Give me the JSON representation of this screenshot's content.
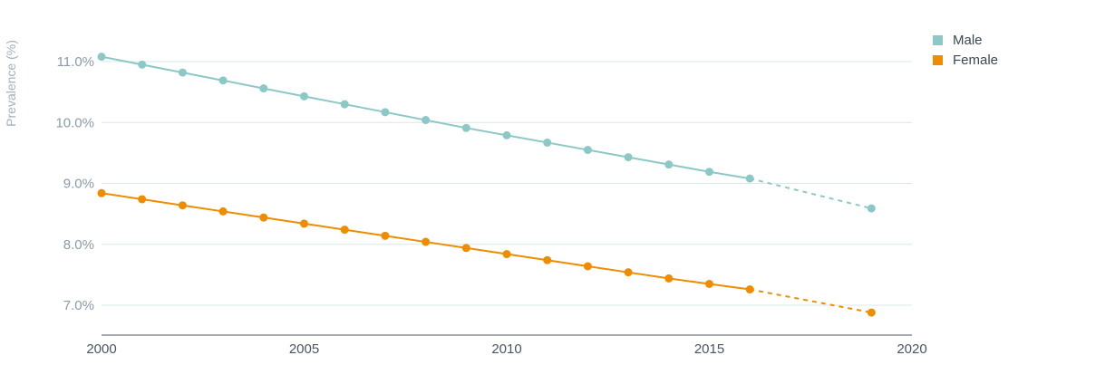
{
  "chart_data": {
    "type": "line",
    "ylabel": "Prevalence (%)",
    "xlabel": "",
    "xlim": [
      2000,
      2020
    ],
    "ylim": [
      6.5,
      11.5
    ],
    "x_ticks": [
      "2000",
      "2005",
      "2010",
      "2015",
      "2020"
    ],
    "y_ticks": [
      "7.0%",
      "8.0%",
      "9.0%",
      "10.0%",
      "11.0%"
    ],
    "grid": "horizontal",
    "legend_position": "top-right",
    "series": [
      {
        "name": "Male",
        "color": "#8cc9c6",
        "points": [
          {
            "x": 2000,
            "y": 11.08
          },
          {
            "x": 2001,
            "y": 10.95
          },
          {
            "x": 2002,
            "y": 10.82
          },
          {
            "x": 2003,
            "y": 10.69
          },
          {
            "x": 2004,
            "y": 10.56
          },
          {
            "x": 2005,
            "y": 10.43
          },
          {
            "x": 2006,
            "y": 10.3
          },
          {
            "x": 2007,
            "y": 10.17
          },
          {
            "x": 2008,
            "y": 10.04
          },
          {
            "x": 2009,
            "y": 9.91
          },
          {
            "x": 2010,
            "y": 9.79
          },
          {
            "x": 2011,
            "y": 9.67
          },
          {
            "x": 2012,
            "y": 9.55
          },
          {
            "x": 2013,
            "y": 9.43
          },
          {
            "x": 2014,
            "y": 9.31
          },
          {
            "x": 2015,
            "y": 9.19
          },
          {
            "x": 2016,
            "y": 9.08
          }
        ],
        "projected": [
          {
            "x": 2019,
            "y": 8.59
          }
        ]
      },
      {
        "name": "Female",
        "color": "#ef8c00",
        "points": [
          {
            "x": 2000,
            "y": 8.84
          },
          {
            "x": 2001,
            "y": 8.74
          },
          {
            "x": 2002,
            "y": 8.64
          },
          {
            "x": 2003,
            "y": 8.54
          },
          {
            "x": 2004,
            "y": 8.44
          },
          {
            "x": 2005,
            "y": 8.34
          },
          {
            "x": 2006,
            "y": 8.24
          },
          {
            "x": 2007,
            "y": 8.14
          },
          {
            "x": 2008,
            "y": 8.04
          },
          {
            "x": 2009,
            "y": 7.94
          },
          {
            "x": 2010,
            "y": 7.84
          },
          {
            "x": 2011,
            "y": 7.74
          },
          {
            "x": 2012,
            "y": 7.64
          },
          {
            "x": 2013,
            "y": 7.54
          },
          {
            "x": 2014,
            "y": 7.44
          },
          {
            "x": 2015,
            "y": 7.35
          },
          {
            "x": 2016,
            "y": 7.26
          }
        ],
        "projected": [
          {
            "x": 2019,
            "y": 6.88
          }
        ]
      }
    ]
  }
}
